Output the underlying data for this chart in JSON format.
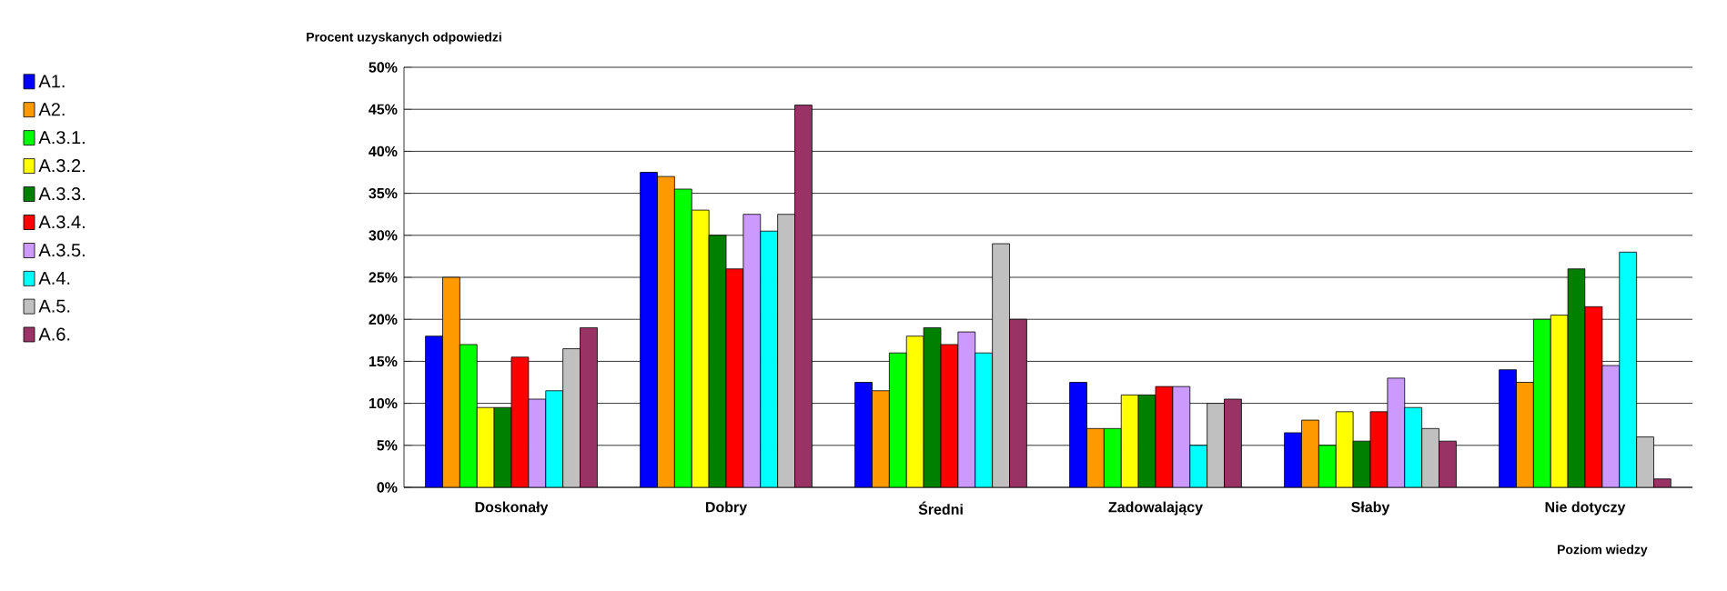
{
  "chart_data": {
    "type": "bar",
    "ylabel": "Procent uzyskanych odpowiedzi",
    "xlabel": "Poziom wiedzy",
    "categories": [
      "Doskonały",
      "Dobry",
      "Średni",
      "Zadowalający",
      "Słaby",
      "Nie dotyczy"
    ],
    "series": [
      {
        "name": "A1.",
        "color": "#0000ff",
        "values": [
          18,
          37.5,
          12.5,
          12.5,
          6.5,
          14
        ]
      },
      {
        "name": "A2.",
        "color": "#ff9900",
        "values": [
          25,
          37,
          11.5,
          7,
          8,
          12.5
        ]
      },
      {
        "name": "A.3.1.",
        "color": "#00ff00",
        "values": [
          17,
          35.5,
          16,
          7,
          5,
          20
        ]
      },
      {
        "name": "A.3.2.",
        "color": "#ffff00",
        "values": [
          9.5,
          33,
          18,
          11,
          9,
          20.5
        ]
      },
      {
        "name": "A.3.3.",
        "color": "#008000",
        "values": [
          9.5,
          30,
          19,
          11,
          5.5,
          26
        ]
      },
      {
        "name": "A.3.4.",
        "color": "#ff0000",
        "values": [
          15.5,
          26,
          17,
          12,
          9,
          21.5
        ]
      },
      {
        "name": "A.3.5.",
        "color": "#cc99ff",
        "values": [
          10.5,
          32.5,
          18.5,
          12,
          13,
          14.5
        ]
      },
      {
        "name": "A.4.",
        "color": "#00ffff",
        "values": [
          11.5,
          30.5,
          16,
          5,
          9.5,
          28
        ]
      },
      {
        "name": "A.5.",
        "color": "#c0c0c0",
        "values": [
          16.5,
          32.5,
          29,
          10,
          7,
          6
        ]
      },
      {
        "name": "A.6.",
        "color": "#993366",
        "values": [
          19,
          45.5,
          20,
          10.5,
          5.5,
          1
        ]
      }
    ],
    "ylim": [
      0,
      50
    ],
    "yticks": [
      {
        "value": 0,
        "label": "0%"
      },
      {
        "value": 5,
        "label": "5%"
      },
      {
        "value": 10,
        "label": "10%"
      },
      {
        "value": 15,
        "label": "15%"
      },
      {
        "value": 20,
        "label": "20%"
      },
      {
        "value": 25,
        "label": "25%"
      },
      {
        "value": 30,
        "label": "30%"
      },
      {
        "value": 35,
        "label": "35%"
      },
      {
        "value": 40,
        "label": "40%"
      },
      {
        "value": 45,
        "label": "45%"
      },
      {
        "value": 50,
        "label": "50%"
      }
    ],
    "grid": "y",
    "legend": "left"
  }
}
